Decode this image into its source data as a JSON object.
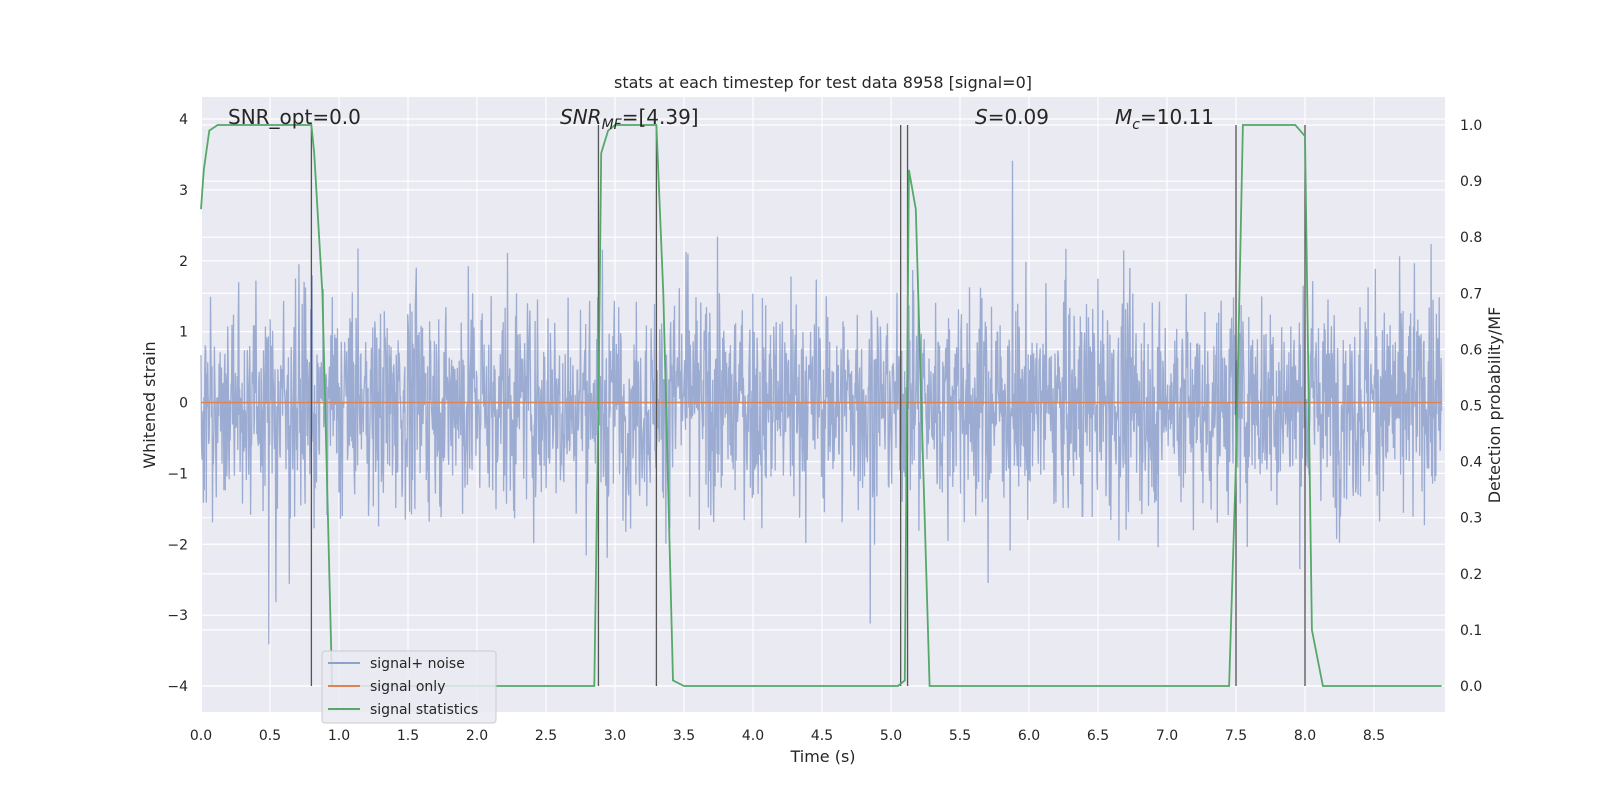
{
  "chart_data": {
    "type": "line",
    "title": "stats at each timestep for test data 8958 [signal=0]",
    "xlabel": "Time (s)",
    "ylabel_left": "Whitened strain",
    "ylabel_right": "Detection probability/MF",
    "xlim": [
      0.0,
      9.0
    ],
    "ylim_left": [
      -4.4,
      4.3
    ],
    "ylim_right": [
      -0.05,
      1.04
    ],
    "x_ticks": [
      "0.0",
      "0.5",
      "1.0",
      "1.5",
      "2.0",
      "2.5",
      "3.0",
      "3.5",
      "4.0",
      "4.5",
      "5.0",
      "5.5",
      "6.0",
      "6.5",
      "7.0",
      "7.5",
      "8.0",
      "8.5"
    ],
    "y_ticks_left": [
      "4",
      "3",
      "2",
      "1",
      "0",
      "−1",
      "−2",
      "−3",
      "−4"
    ],
    "y_ticks_right": [
      "1.0",
      "0.9",
      "0.8",
      "0.7",
      "0.6",
      "0.5",
      "0.4",
      "0.3",
      "0.2",
      "0.1",
      "0.0"
    ],
    "annotations": {
      "snr_opt": "SNR_opt=0.0",
      "snr_mf_main": "SNR",
      "snr_mf_sub": "MF",
      "snr_mf_val": "=[4.39]",
      "s_main": "S",
      "s_val": "=0.09",
      "mc_main": "M",
      "mc_sub": "c",
      "mc_val": "=10.11"
    },
    "legend": {
      "placement": "lower-left",
      "entries": [
        "signal+ noise",
        "signal only",
        "signal statistics"
      ]
    },
    "colors": {
      "noise": "#8da0cb",
      "signal": "#dd8452",
      "statistics": "#55a868",
      "vlines": "#555555",
      "background": "#eaeaf2"
    },
    "series": [
      {
        "name": "signal statistics",
        "x": [
          0.0,
          0.02,
          0.06,
          0.12,
          0.8,
          0.82,
          0.88,
          0.95,
          1.0,
          2.85,
          2.88,
          2.9,
          2.95,
          3.0,
          3.3,
          3.35,
          3.42,
          3.5,
          5.05,
          5.1,
          5.13,
          5.18,
          5.22,
          5.28,
          5.3,
          7.45,
          7.5,
          7.55,
          7.93,
          8.0,
          8.05,
          8.13,
          8.99
        ],
        "y": [
          0.85,
          0.92,
          0.99,
          1.0,
          1.0,
          0.95,
          0.7,
          0.0,
          0.0,
          0.0,
          0.5,
          0.95,
          0.99,
          1.0,
          1.0,
          0.7,
          0.01,
          0.0,
          0.0,
          0.01,
          0.92,
          0.85,
          0.5,
          0.0,
          0.0,
          0.0,
          0.4,
          1.0,
          1.0,
          0.98,
          0.1,
          0.0,
          0.0
        ]
      },
      {
        "name": "signal only",
        "x": [
          0.0,
          8.99
        ],
        "y": [
          0.0,
          0.0
        ]
      },
      {
        "name": "signal+ noise",
        "noise_sigma": 1.0,
        "spike_max": 4.0
      }
    ],
    "vertical_markers": [
      0.8,
      2.88,
      3.3,
      5.07,
      5.12,
      7.5,
      8.0
    ]
  }
}
